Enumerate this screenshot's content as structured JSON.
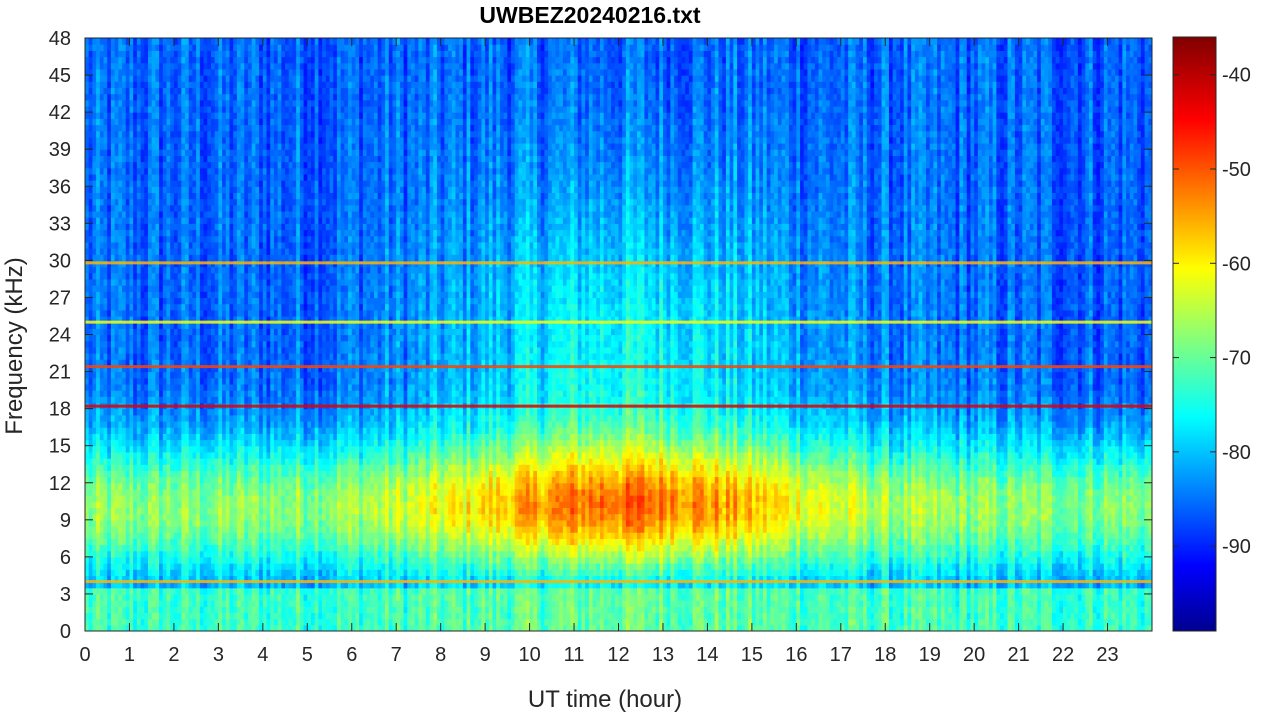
{
  "chart_data": {
    "type": "heatmap",
    "title": "UWBEZ20240216.txt",
    "xlabel": "UT time (hour)",
    "ylabel": "Frequency (kHz)",
    "xlim": [
      0,
      24
    ],
    "ylim": [
      0,
      48
    ],
    "x_ticks": [
      "0",
      "1",
      "2",
      "3",
      "4",
      "5",
      "6",
      "7",
      "8",
      "9",
      "10",
      "11",
      "12",
      "13",
      "14",
      "15",
      "16",
      "17",
      "18",
      "19",
      "20",
      "21",
      "22",
      "23"
    ],
    "y_ticks": [
      "0",
      "3",
      "6",
      "9",
      "12",
      "15",
      "18",
      "21",
      "24",
      "27",
      "30",
      "33",
      "36",
      "39",
      "42",
      "45",
      "48"
    ],
    "colormap": "jet",
    "colorbar": {
      "range": [
        -99,
        -36
      ],
      "ticks": [
        "-40",
        "-50",
        "-60",
        "-70",
        "-80",
        "-90"
      ]
    },
    "features": {
      "broadband_hiss_band_khz": [
        4,
        16
      ],
      "strongest_hiss_hours": [
        9,
        17
      ],
      "strongest_hiss_level": -45,
      "background_high_freq_level": -85,
      "narrowband_lines": [
        {
          "freq_khz": 18.2,
          "level": -42
        },
        {
          "freq_khz": 21.4,
          "level": -48
        },
        {
          "freq_khz": 25.0,
          "level": -60
        },
        {
          "freq_khz": 29.8,
          "level": -55
        },
        {
          "freq_khz": 4.0,
          "level": -55
        }
      ]
    }
  }
}
